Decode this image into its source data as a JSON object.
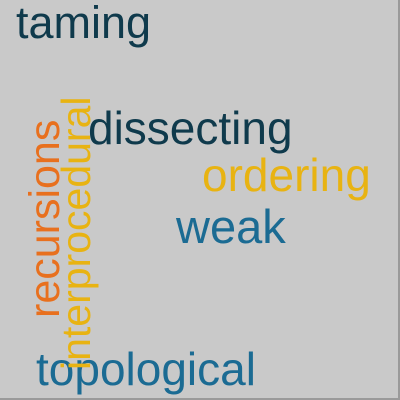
{
  "cloud": {
    "background": "#c9c9c9",
    "words": [
      {
        "text": "taming",
        "color": "#0f3a4c",
        "orientation": "horizontal"
      },
      {
        "text": "dissecting",
        "color": "#0f3a4c",
        "orientation": "horizontal"
      },
      {
        "text": "ordering",
        "color": "#e8b312",
        "orientation": "horizontal"
      },
      {
        "text": "weak",
        "color": "#1b6b93",
        "orientation": "horizontal"
      },
      {
        "text": "topological",
        "color": "#1b6b93",
        "orientation": "horizontal"
      },
      {
        "text": "interprocedural",
        "color": "#e8b312",
        "orientation": "vertical"
      },
      {
        "text": "recursions",
        "color": "#e8701e",
        "orientation": "vertical"
      }
    ]
  }
}
